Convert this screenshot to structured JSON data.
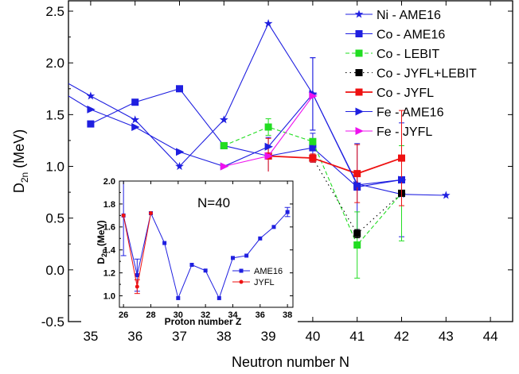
{
  "chart_data": [
    {
      "type": "line",
      "xlabel": "Neutron number N",
      "ylabel_main": "D",
      "ylabel_sub": "2n",
      "ylabel_unit": " (MeV)",
      "xlim": [
        34.5,
        44.5
      ],
      "ylim": [
        -0.5,
        2.6
      ],
      "xticks": [
        35,
        36,
        37,
        38,
        39,
        40,
        41,
        42,
        43,
        44
      ],
      "yticks": [
        -0.5,
        0.0,
        0.5,
        1.0,
        1.5,
        2.0,
        2.5
      ],
      "ytick_labels": [
        "-0.5",
        "0.0",
        "0.5",
        "1.0",
        "1.5",
        "2.0",
        "2.5"
      ],
      "legend_position": "top-right",
      "series": [
        {
          "name": "Ni - AME16",
          "color": "#1f1fe0",
          "marker": "star",
          "dash": "solid",
          "x": [
            34.5,
            35,
            36,
            37,
            38,
            39,
            40,
            41,
            42,
            43
          ],
          "y": [
            1.8,
            1.68,
            1.45,
            1.0,
            1.45,
            2.38,
            1.7,
            0.83,
            0.73,
            0.72
          ],
          "err": [
            0,
            0,
            0,
            0,
            0,
            0,
            0.35,
            0,
            0,
            0
          ],
          "marker_from": 1
        },
        {
          "name": "Co - AME16",
          "color": "#1f1fe0",
          "marker": "square",
          "dash": "solid",
          "x": [
            35,
            36,
            37,
            38,
            39,
            40,
            41,
            42
          ],
          "y": [
            1.41,
            1.62,
            1.75,
            1.2,
            1.1,
            1.18,
            0.8,
            0.87
          ],
          "err": [
            0,
            0,
            0,
            0,
            0.18,
            0.14,
            0.42,
            0.55
          ]
        },
        {
          "name": "Co - LEBIT",
          "color": "#22dd22",
          "marker": "square",
          "dash": "dashed",
          "x": [
            38,
            39,
            40,
            41,
            42
          ],
          "y": [
            1.2,
            1.38,
            1.24,
            0.24,
            0.74
          ],
          "err": [
            0,
            0.08,
            0,
            0.32,
            0.46
          ]
        },
        {
          "name": "Co - JYFL+LEBIT",
          "color": "#000000",
          "marker": "square",
          "dash": "dotted",
          "x": [
            40,
            41,
            42
          ],
          "y": [
            1.08,
            0.35,
            0.74
          ],
          "err": [
            0,
            0.04,
            0
          ]
        },
        {
          "name": "Co - JYFL",
          "color": "#ee1111",
          "marker": "square",
          "dash": "solid",
          "x": [
            39,
            40,
            41,
            42
          ],
          "y": [
            1.1,
            1.08,
            0.93,
            1.08
          ],
          "err": [
            0.17,
            0.04,
            0.28,
            0.46
          ]
        },
        {
          "name": "Fe  - AME16",
          "color": "#1f1fe0",
          "marker": "triangle-right",
          "dash": "solid",
          "x": [
            34.5,
            35,
            36,
            37,
            38,
            39,
            40,
            41,
            42
          ],
          "y": [
            1.68,
            1.55,
            1.38,
            1.14,
            1.0,
            1.19,
            1.7,
            0.82,
            0.87
          ],
          "err": [
            0,
            0,
            0,
            0,
            0,
            0,
            0.35,
            0,
            0
          ],
          "marker_from": 1
        },
        {
          "name": "Fe  - JYFL",
          "color": "#ee11ee",
          "marker": "triangle-right",
          "dash": "solid",
          "x": [
            38,
            39,
            40
          ],
          "y": [
            1.0,
            1.1,
            1.68
          ],
          "err": [
            0,
            0,
            0
          ]
        }
      ]
    },
    {
      "type": "line",
      "title": "N=40",
      "xlabel": "Proton number Z",
      "ylabel_main": "D",
      "ylabel_sub": "2n",
      "ylabel_unit": " (MeV)",
      "xlim": [
        25.7,
        38.4
      ],
      "ylim": [
        0.9,
        2.0
      ],
      "xticks": [
        26,
        28,
        30,
        32,
        34,
        36,
        38
      ],
      "yticks": [
        1.0,
        1.2,
        1.4,
        1.6,
        1.8,
        2.0
      ],
      "ytick_labels": [
        "1.0",
        "1.2",
        "1.4",
        "1.6",
        "1.8",
        "2.0"
      ],
      "legend_position": "bottom-right",
      "series": [
        {
          "name": "AME16",
          "color": "#1f1fe0",
          "marker": "square",
          "x": [
            26,
            27,
            28,
            29,
            30,
            31,
            32,
            33,
            34,
            35,
            36,
            37,
            38
          ],
          "y": [
            1.7,
            1.18,
            1.72,
            1.46,
            0.98,
            1.27,
            1.22,
            0.98,
            1.33,
            1.35,
            1.5,
            1.6,
            1.73
          ],
          "err": [
            0.35,
            0.14,
            0,
            0,
            0,
            0,
            0,
            0,
            0,
            0,
            0,
            0,
            0.04
          ]
        },
        {
          "name": "JYFL",
          "color": "#ee1111",
          "marker": "circle",
          "x": [
            26,
            27,
            28
          ],
          "y": [
            1.7,
            1.08,
            1.72
          ],
          "err": [
            0,
            0.06,
            0
          ]
        }
      ]
    }
  ]
}
